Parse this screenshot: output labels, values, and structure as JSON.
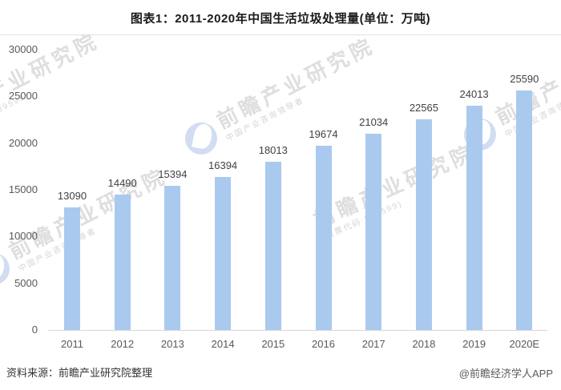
{
  "title": "图表1：2011-2020年中国生活垃圾处理量(单位：万吨)",
  "source_note": "资料来源：前瞻产业研究院整理",
  "credit": "@前瞻经济学人APP",
  "colors": {
    "bar": "#aac9ef",
    "value_label": "#404040",
    "axis_label": "#595959",
    "title": "#1a1a1a",
    "baseline": "#d6d6d6",
    "divider": "#e3e3e3",
    "watermark_text": "#dedede",
    "watermark_logo": "#94afdd"
  },
  "watermark": {
    "big": "前瞻产业研究院",
    "sub_brand": "中国产业咨询领导者",
    "sub_stock": "(股票代码:839599)"
  },
  "chart_data": {
    "type": "bar",
    "title": "图表1：2011-2020年中国生活垃圾处理量(单位：万吨)",
    "unit": "万吨",
    "categories": [
      "2011",
      "2012",
      "2013",
      "2014",
      "2015",
      "2016",
      "2017",
      "2018",
      "2019",
      "2020E"
    ],
    "values": [
      13090,
      14490,
      15394,
      16394,
      18013,
      19674,
      21034,
      22565,
      24013,
      25590
    ],
    "xlabel": "",
    "ylabel": "",
    "ylim": [
      0,
      30000
    ],
    "yticks": [
      0,
      5000,
      10000,
      15000,
      20000,
      25000,
      30000
    ],
    "grid": false,
    "legend": false,
    "bar_color": "#aac9ef",
    "value_labels_shown": true
  }
}
